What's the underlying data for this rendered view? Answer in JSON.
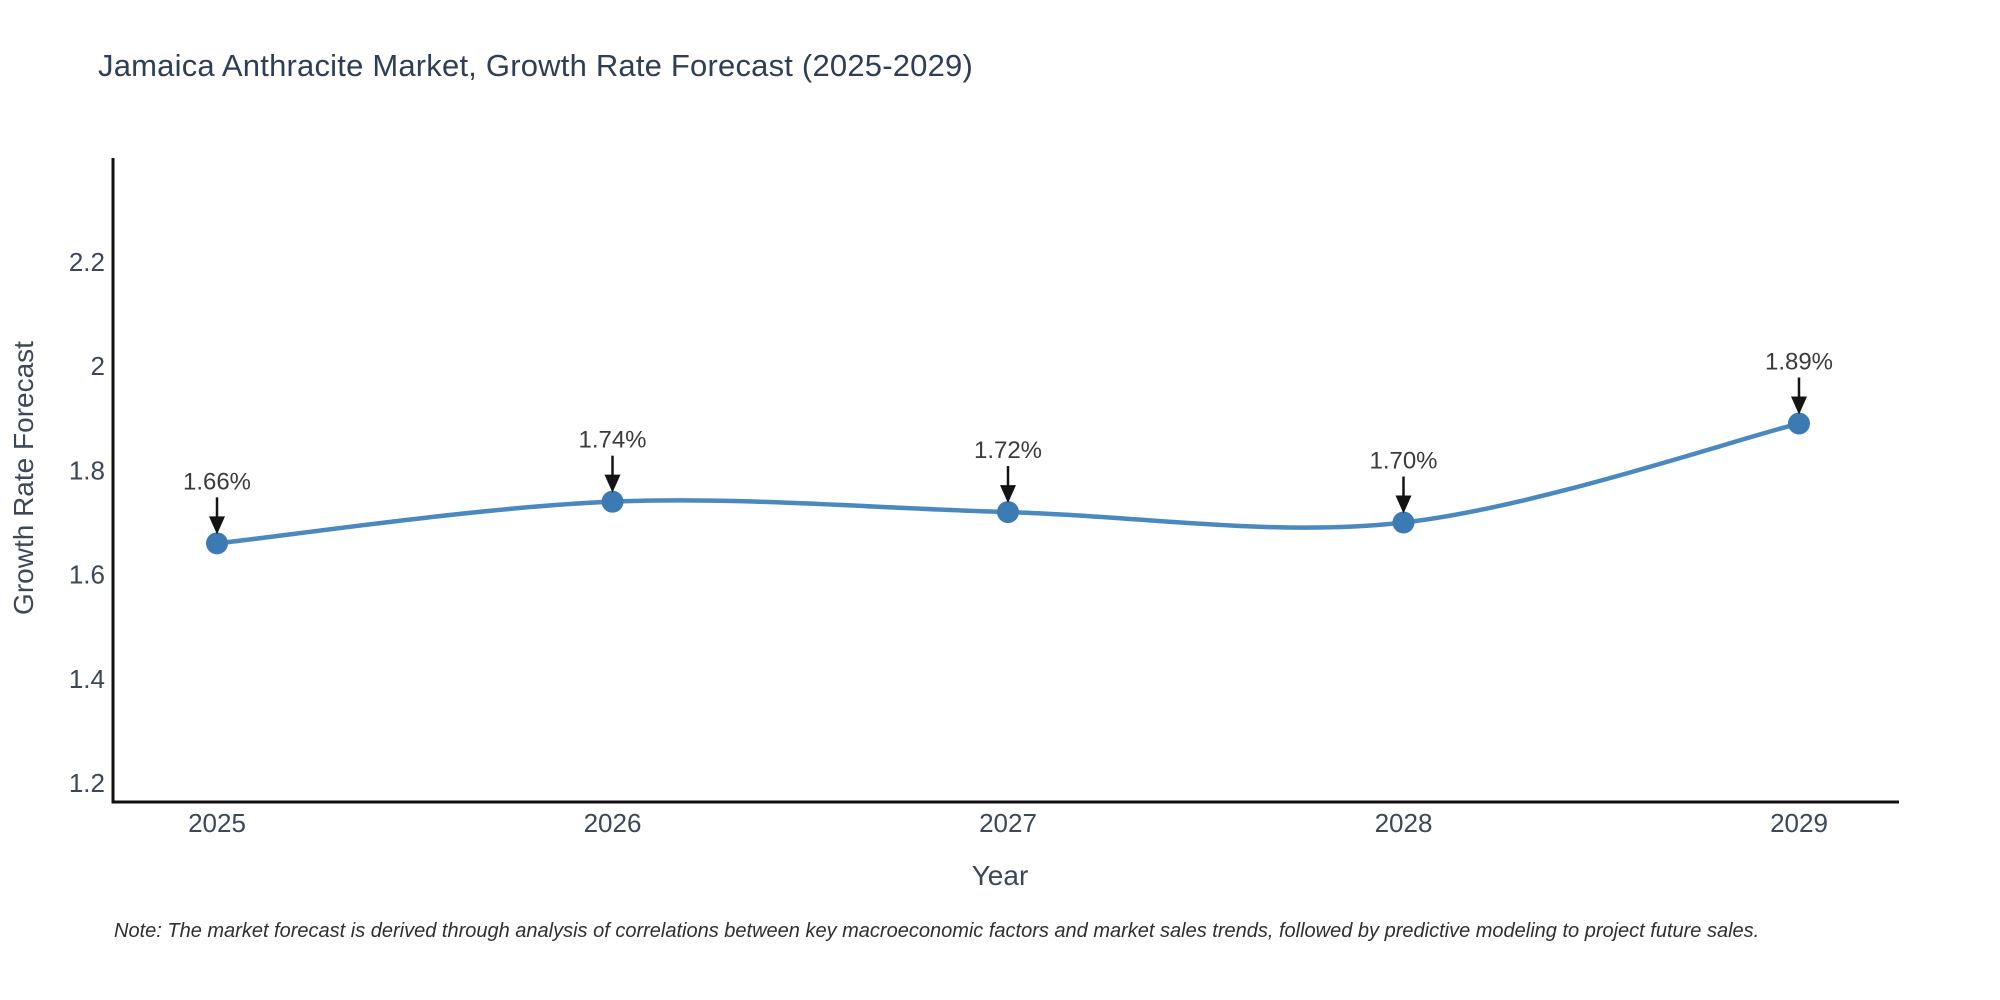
{
  "title": "Jamaica Anthracite Market, Growth Rate Forecast (2025-2029)",
  "note": "Note: The market forecast is derived through analysis of correlations between key macroeconomic factors and market sales trends, followed by predictive modeling to project future sales.",
  "chart_data": {
    "type": "line",
    "title": "Jamaica Anthracite Market, Growth Rate Forecast (2025-2029)",
    "xlabel": "Year",
    "ylabel": "Growth Rate Forecast",
    "x": [
      2025,
      2026,
      2027,
      2028,
      2029
    ],
    "x_tick_labels": [
      "2025",
      "2026",
      "2027",
      "2028",
      "2029"
    ],
    "series": [
      {
        "name": "Growth Rate Forecast",
        "values": [
          1.66,
          1.74,
          1.72,
          1.7,
          1.89
        ]
      }
    ],
    "point_labels": [
      "1.66%",
      "1.74%",
      "1.72%",
      "1.70%",
      "1.89%"
    ],
    "y_ticks": [
      1.2,
      1.4,
      1.6,
      1.8,
      2.0,
      2.2
    ],
    "y_tick_labels": [
      "1.2",
      "1.4",
      "1.6",
      "1.8",
      "2",
      "2.2"
    ],
    "ylim": [
      1.16,
      2.4
    ],
    "grid": false,
    "legend": false,
    "line_color": "#4a88c0",
    "marker_color": "#3b7ab3",
    "arrow_color": "#141414",
    "annotation_color": "#3b3b3b"
  }
}
